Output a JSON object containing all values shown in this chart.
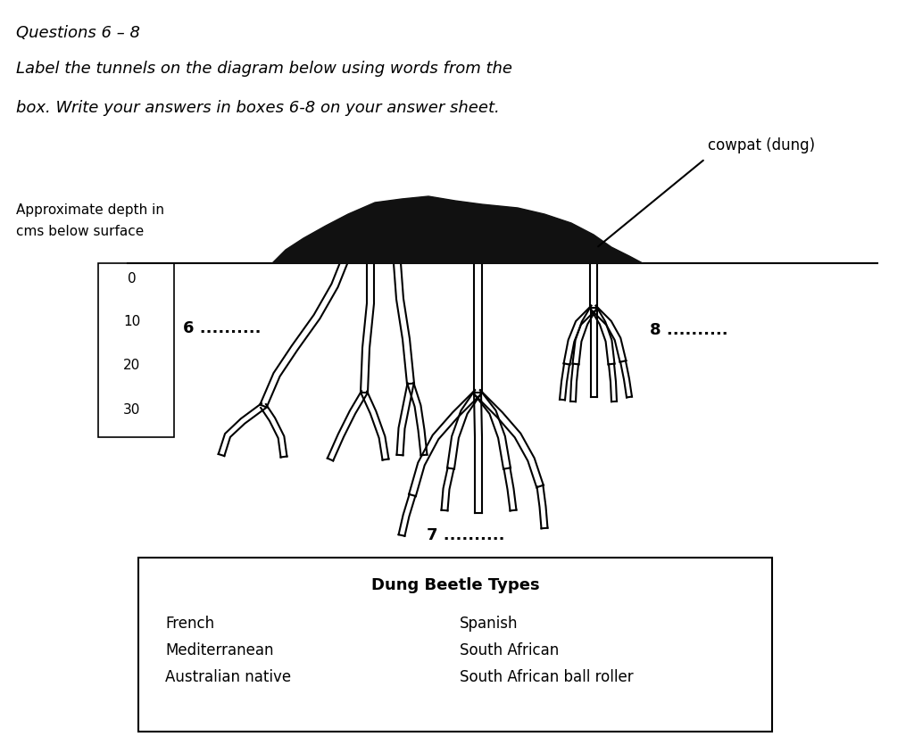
{
  "title_line1": "Questions 6 – 8",
  "title_line2": "Label the tunnels on the diagram below using words from the",
  "title_line3": "box. Write your answers in boxes 6-8 on your answer sheet.",
  "depth_label_line1": "Approximate depth in",
  "depth_label_line2": "cms below surface",
  "depth_ticks": [
    "0",
    "10",
    "20",
    "30"
  ],
  "cowpat_label": "cowpat (dung)",
  "q6_label": "6 ..........",
  "q7_label": "7 ..........",
  "q8_label": "8 ..........",
  "box_title": "Dung Beetle Types",
  "box_col1": [
    "French",
    "Mediterranean",
    "Australian native"
  ],
  "box_col2": [
    "Spanish",
    "South African",
    "South African ball roller"
  ],
  "bg_color": "#ffffff",
  "text_color": "#000000",
  "line_color": "#000000",
  "dung_color": "#111111"
}
